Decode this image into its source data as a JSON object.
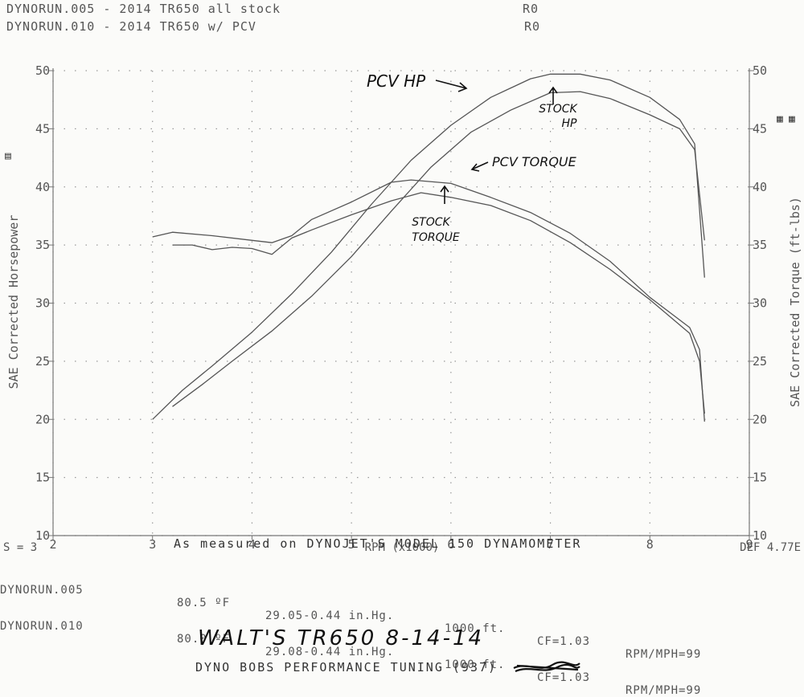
{
  "header": {
    "run1_name": "DYNORUN.005 - 2014 TR650 all stock",
    "run1_code": "R0",
    "run2_name": "DYNORUN.010 - 2014 TR650 w/ PCV",
    "run2_code": "R0"
  },
  "chart_data": {
    "type": "line",
    "xlabel": "RPM (x1000)",
    "ylabel_left": "SAE Corrected Horsepower",
    "ylabel_right": "SAE Corrected Torque (ft-lbs)",
    "xlim": [
      2,
      9
    ],
    "ylim": [
      10,
      50
    ],
    "x_ticks": [
      "2",
      "3",
      "4",
      "5",
      "6",
      "7",
      "8",
      "9"
    ],
    "y_ticks": [
      "10",
      "15",
      "20",
      "25",
      "30",
      "35",
      "40",
      "45",
      "50"
    ],
    "grid": true,
    "corner_left": "S = 3",
    "corner_right": "DEF 4.77E",
    "series": [
      {
        "name": "PCV HP",
        "x": [
          3.0,
          3.3,
          3.6,
          4.0,
          4.4,
          4.8,
          5.2,
          5.6,
          6.0,
          6.4,
          6.8,
          7.0,
          7.3,
          7.6,
          8.0,
          8.3,
          8.45,
          8.55
        ],
        "y": [
          20.0,
          22.5,
          24.6,
          27.5,
          30.8,
          34.4,
          38.5,
          42.3,
          45.3,
          47.7,
          49.3,
          49.7,
          49.7,
          49.2,
          47.7,
          45.8,
          43.7,
          32.2
        ]
      },
      {
        "name": "STOCK HP",
        "x": [
          3.2,
          3.5,
          3.8,
          4.2,
          4.6,
          5.0,
          5.4,
          5.8,
          6.2,
          6.6,
          7.0,
          7.3,
          7.6,
          8.0,
          8.3,
          8.45,
          8.55
        ],
        "y": [
          21.1,
          23.0,
          25.0,
          27.6,
          30.6,
          34.0,
          37.9,
          41.7,
          44.7,
          46.6,
          48.1,
          48.2,
          47.6,
          46.2,
          45.0,
          43.2,
          35.4
        ]
      },
      {
        "name": "PCV TORQUE",
        "x": [
          3.0,
          3.2,
          3.6,
          4.0,
          4.2,
          4.4,
          4.6,
          5.0,
          5.4,
          5.6,
          6.0,
          6.4,
          6.8,
          7.2,
          7.6,
          8.0,
          8.4,
          8.5,
          8.55
        ],
        "y": [
          35.7,
          36.1,
          35.8,
          35.4,
          35.2,
          35.8,
          37.2,
          38.7,
          40.4,
          40.6,
          40.3,
          39.1,
          37.8,
          36.0,
          33.6,
          30.5,
          27.9,
          26.0,
          19.8
        ]
      },
      {
        "name": "STOCK TORQUE",
        "x": [
          3.2,
          3.4,
          3.6,
          3.8,
          4.0,
          4.2,
          4.4,
          4.6,
          5.0,
          5.4,
          5.7,
          6.0,
          6.4,
          6.8,
          7.2,
          7.6,
          8.0,
          8.4,
          8.5,
          8.55
        ],
        "y": [
          35.0,
          35.0,
          34.6,
          34.8,
          34.7,
          34.2,
          35.6,
          36.3,
          37.6,
          38.8,
          39.5,
          39.1,
          38.4,
          37.1,
          35.2,
          32.9,
          30.3,
          27.4,
          25.0,
          20.5
        ]
      }
    ],
    "annotations": {
      "pcv_hp": "PCV HP",
      "stock_hp_1": "STOCK",
      "stock_hp_2": "HP",
      "pcv_torque": "PCV TORQUE",
      "stock_torque_1": "STOCK",
      "stock_torque_2": "TORQUE"
    }
  },
  "footer": {
    "measured": "As measured on DYNOJET'S MODEL 150 DYNAMOMETER",
    "row1": {
      "run": "DYNORUN.005",
      "temp": "80.5 ºF",
      "pressure": "29.05-0.44 in.Hg.",
      "altitude": "1000 ft.",
      "cf": "CF=1.03",
      "ratio": "RPM/MPH=99"
    },
    "row2": {
      "run": "DYNORUN.010",
      "temp": "80.0 ºF",
      "pressure": "29.08-0.44 in.Hg.",
      "altitude": "1000 ft.",
      "cf": "CF=1.03",
      "ratio": "RPM/MPH=99"
    },
    "handwritten": "WALT'S TR650 8-14-14",
    "shop": "DYNO BOBS PERFORMANCE TUNING (937)"
  }
}
